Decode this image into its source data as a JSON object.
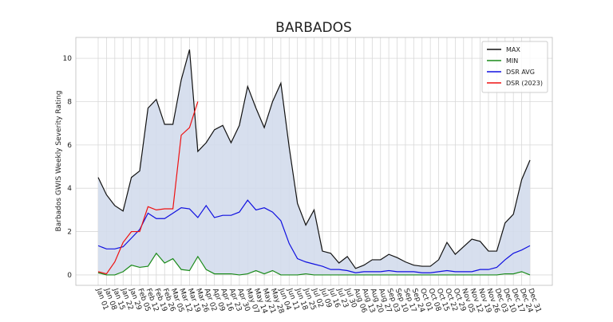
{
  "chart_data": {
    "type": "line",
    "title": "BARBADOS",
    "y_label": "Barbados GWIS Weekly Severity Rating",
    "categories": [
      "Jan 01",
      "Jan 08",
      "Jan 15",
      "Jan 22",
      "Jan 29",
      "Feb 05",
      "Feb 12",
      "Feb 19",
      "Feb 26",
      "Mar 05",
      "Mar 12",
      "Mar 19",
      "Mar 26",
      "Apr 02",
      "Apr 09",
      "Apr 16",
      "Apr 23",
      "Apr 30",
      "May 07",
      "May 14",
      "May 21",
      "May 28",
      "Jun 04",
      "Jun 11",
      "Jun 18",
      "Jun 25",
      "Jul 02",
      "Jul 09",
      "Jul 16",
      "Jul 23",
      "Jul 30",
      "Aug 06",
      "Aug 13",
      "Aug 20",
      "Aug 27",
      "Sep 03",
      "Sep 10",
      "Sep 17",
      "Sep 24",
      "Oct 01",
      "Oct 08",
      "Oct 15",
      "Oct 22",
      "Oct 29",
      "Nov 05",
      "Nov 12",
      "Nov 19",
      "Nov 26",
      "Dec 03",
      "Dec 10",
      "Dec 17",
      "Dec 24",
      "Dec 31"
    ],
    "series": [
      {
        "name": "MAX",
        "color": "#111111",
        "values": [
          4.5,
          3.7,
          3.2,
          2.95,
          4.5,
          4.8,
          7.7,
          8.1,
          6.95,
          6.95,
          9.0,
          10.4,
          5.7,
          6.1,
          6.7,
          6.9,
          6.1,
          6.9,
          8.7,
          7.7,
          6.8,
          8.0,
          8.85,
          5.9,
          3.3,
          2.3,
          3.0,
          1.1,
          1.0,
          0.55,
          0.85,
          0.3,
          0.45,
          0.7,
          0.7,
          0.95,
          0.8,
          0.6,
          0.45,
          0.4,
          0.4,
          0.7,
          1.5,
          0.95,
          1.3,
          1.65,
          1.55,
          1.1,
          1.1,
          2.4,
          2.8,
          4.4,
          5.3
        ]
      },
      {
        "name": "MIN",
        "color": "#1a8a1a",
        "values": [
          0.1,
          0,
          0,
          0.15,
          0.45,
          0.35,
          0.4,
          1.0,
          0.55,
          0.75,
          0.25,
          0.2,
          0.85,
          0.25,
          0.05,
          0.05,
          0.05,
          0,
          0.05,
          0.2,
          0.05,
          0.2,
          0,
          0,
          0,
          0.05,
          0,
          0,
          0,
          0,
          0,
          0,
          0,
          0,
          0,
          0,
          0,
          0,
          0,
          0,
          0,
          0,
          0,
          0,
          0,
          0,
          0,
          0,
          0,
          0.05,
          0.05,
          0.15,
          0
        ]
      },
      {
        "name": "DSR AVG",
        "color": "#1010e0",
        "values": [
          1.35,
          1.2,
          1.2,
          1.3,
          1.7,
          2.1,
          2.85,
          2.6,
          2.6,
          2.85,
          3.1,
          3.05,
          2.65,
          3.2,
          2.65,
          2.75,
          2.75,
          2.9,
          3.45,
          3.0,
          3.1,
          2.9,
          2.5,
          1.45,
          0.75,
          0.6,
          0.5,
          0.4,
          0.25,
          0.25,
          0.2,
          0.1,
          0.15,
          0.15,
          0.15,
          0.2,
          0.15,
          0.15,
          0.15,
          0.1,
          0.1,
          0.15,
          0.2,
          0.15,
          0.15,
          0.15,
          0.25,
          0.25,
          0.35,
          0.7,
          1.0,
          1.15,
          1.35
        ]
      },
      {
        "name": "DSR (2023)",
        "color": "#ee1111",
        "values": [
          0.15,
          0.05,
          0.6,
          1.5,
          2.0,
          2.0,
          3.15,
          3.0,
          3.05,
          3.05,
          6.45,
          6.8,
          8.0,
          null,
          null,
          null,
          null,
          null,
          null,
          null,
          null,
          null,
          null,
          null,
          null,
          null,
          null,
          null,
          null,
          null,
          null,
          null,
          null,
          null,
          null,
          null,
          null,
          null,
          null,
          null,
          null,
          null,
          null,
          null,
          null,
          null,
          null,
          null,
          null,
          null,
          null,
          null,
          null
        ]
      }
    ],
    "fill_between": {
      "color": "#d3dcec"
    },
    "ylim": [
      -0.48,
      10.96
    ],
    "yticks": [
      0,
      2,
      4,
      6,
      8,
      10
    ],
    "grid": true,
    "legend": "upper right"
  }
}
